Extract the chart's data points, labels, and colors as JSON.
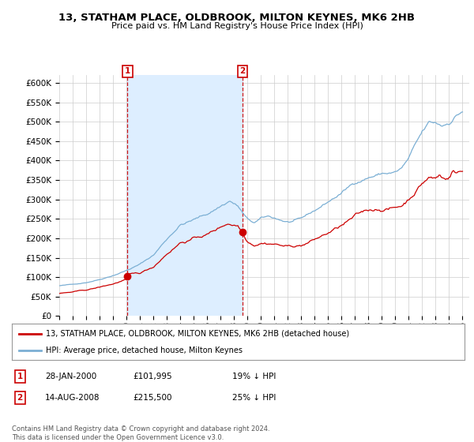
{
  "title": "13, STATHAM PLACE, OLDBROOK, MILTON KEYNES, MK6 2HB",
  "subtitle": "Price paid vs. HM Land Registry's House Price Index (HPI)",
  "bg_color": "#ffffff",
  "grid_color": "#cccccc",
  "hpi_color": "#7bafd4",
  "price_color": "#cc0000",
  "shade_color": "#ddeeff",
  "sale1_x": 2000.08,
  "sale1_y": 101995,
  "sale2_x": 2008.62,
  "sale2_y": 215500,
  "ylim": [
    0,
    620000
  ],
  "yticks": [
    0,
    50000,
    100000,
    150000,
    200000,
    250000,
    300000,
    350000,
    400000,
    450000,
    500000,
    550000,
    600000
  ],
  "xlim": [
    1995.0,
    2025.5
  ],
  "legend_property": "13, STATHAM PLACE, OLDBROOK, MILTON KEYNES, MK6 2HB (detached house)",
  "legend_hpi": "HPI: Average price, detached house, Milton Keynes",
  "table_rows": [
    {
      "num": "1",
      "date": "28-JAN-2000",
      "price": "£101,995",
      "pct": "19% ↓ HPI"
    },
    {
      "num": "2",
      "date": "14-AUG-2008",
      "price": "£215,500",
      "pct": "25% ↓ HPI"
    }
  ],
  "footer": "Contains HM Land Registry data © Crown copyright and database right 2024.\nThis data is licensed under the Open Government Licence v3.0.",
  "xtick_years": [
    1995,
    1996,
    1997,
    1998,
    1999,
    2000,
    2001,
    2002,
    2003,
    2004,
    2005,
    2006,
    2007,
    2008,
    2009,
    2010,
    2011,
    2012,
    2013,
    2014,
    2015,
    2016,
    2017,
    2018,
    2019,
    2020,
    2021,
    2022,
    2023,
    2024,
    2025
  ]
}
